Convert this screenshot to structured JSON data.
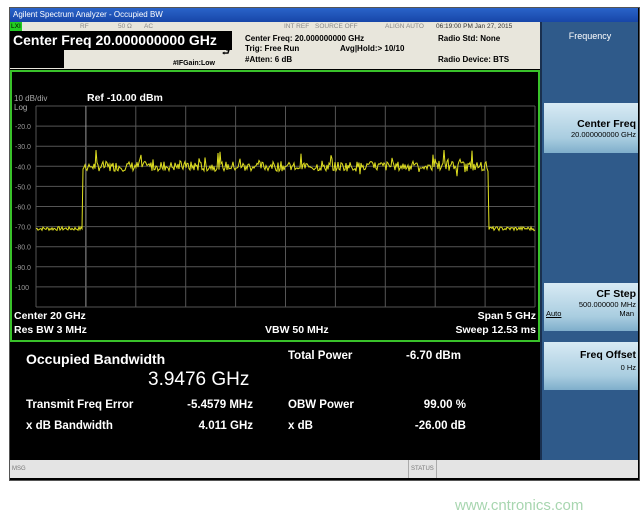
{
  "window": {
    "title": "Agilent Spectrum Analyzer - Occupied BW"
  },
  "status": {
    "lxi": "LXI",
    "rf": "RF",
    "impedance": "50 Ω",
    "coupling": "AC",
    "int_ref": "INT REF",
    "source": "SOURCE OFF",
    "align": "ALIGN AUTO",
    "datetime": "06:19:00 PM Jan 27, 2015"
  },
  "header": {
    "center_freq": "Center Freq 20.000000000 GHz",
    "if_gain": "#IFGain:Low",
    "center_freq_info": "Center Freq: 20.000000000 GHz",
    "trig": "Trig: Free Run",
    "avg_hold": "Avg|Hold:> 10/10",
    "atten": "#Atten: 6 dB",
    "radio_std": "Radio Std: None",
    "radio_device": "Radio Device: BTS"
  },
  "graph": {
    "scale": "10 dB/div",
    "log": "Log",
    "ref": "Ref -10.00 dBm",
    "center": "Center  20 GHz",
    "span": "Span 5 GHz",
    "res_bw": "Res BW  3 MHz",
    "vbw": "VBW  50 MHz",
    "sweep": "Sweep  12.53 ms"
  },
  "chart_data": {
    "type": "line",
    "ylim": [
      -110,
      -10
    ],
    "xlim_ghz": [
      17.5,
      22.5
    ],
    "ytick_labels": [
      "-20.0",
      "-30.0",
      "-40.0",
      "-50.0",
      "-60.0",
      "-70.0",
      "-80.0",
      "-90.0",
      "-100"
    ],
    "grid": true,
    "trace_color": "#e0e020",
    "noise_floor_dbm": -71,
    "band_level_dbm": -40,
    "band_edges_ghz": [
      18.0,
      22.0
    ]
  },
  "results": {
    "obw_label": "Occupied Bandwidth",
    "obw_value": "3.9476 GHz",
    "total_power_label": "Total Power",
    "total_power_value": "-6.70 dBm",
    "tfe_label": "Transmit Freq Error",
    "tfe_value": "-5.4579 MHz",
    "obw_power_label": "OBW Power",
    "obw_power_value": "99.00 %",
    "xdb_bw_label": "x dB Bandwidth",
    "xdb_bw_value": "4.011 GHz",
    "xdb_label": "x dB",
    "xdb_value": "-26.00 dB"
  },
  "softkeys": {
    "menu_title": "Frequency",
    "center_freq": {
      "label": "Center Freq",
      "value": "20.000000000 GHz"
    },
    "cf_step": {
      "label": "CF Step",
      "value": "500.000000 MHz",
      "auto": "Auto",
      "man": "Man"
    },
    "freq_offset": {
      "label": "Freq Offset",
      "value": "0 Hz"
    }
  },
  "footer": {
    "msg": "MSG",
    "status": "STATUS"
  },
  "watermark": "www.cntronics.com"
}
